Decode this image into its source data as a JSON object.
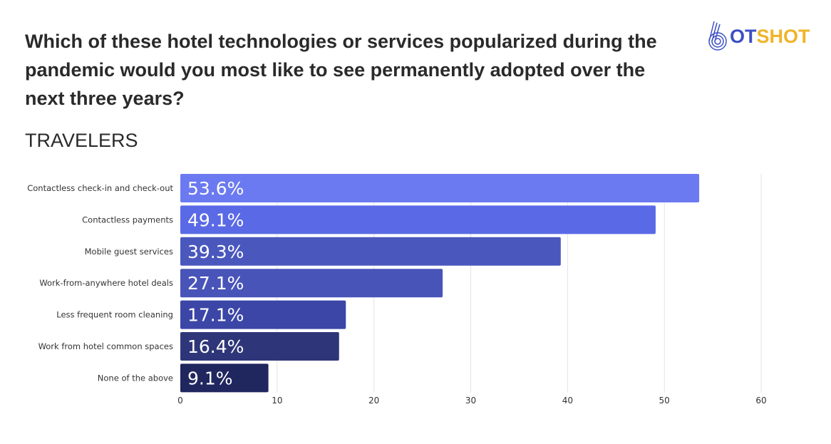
{
  "title": "Which of these hotel technologies or services popularized during the pandemic would you most like to see permanently adopted over the next three years?",
  "subtitle": "TRAVELERS",
  "logo": {
    "text_blue": "OT",
    "text_yellow": "SHOT",
    "full": "HOTSHOT"
  },
  "chart_data": {
    "type": "bar",
    "orientation": "horizontal",
    "title": "Which of these hotel technologies or services popularized during the pandemic would you most like to see permanently adopted over the next three years?",
    "subtitle": "TRAVELERS",
    "categories": [
      "Contactless check-in and check-out",
      "Contactless payments",
      "Mobile guest services",
      "Work-from-anywhere hotel deals",
      "Less frequent room cleaning",
      "Work from hotel common spaces",
      "None of the above"
    ],
    "values": [
      53.6,
      49.1,
      39.3,
      27.1,
      17.1,
      16.4,
      9.1
    ],
    "data_labels": [
      "53.6%",
      "49.1%",
      "39.3%",
      "27.1%",
      "17.1%",
      "16.4%",
      "9.1%"
    ],
    "colors": [
      "#6b7af0",
      "#5a6ae6",
      "#4a58bd",
      "#4854b8",
      "#3b46a6",
      "#2e3679",
      "#20265e"
    ],
    "xlim": [
      0,
      60
    ],
    "xticks": [
      "0",
      "10",
      "20",
      "30",
      "40",
      "50",
      "60"
    ],
    "grid": true,
    "xlabel": "",
    "ylabel": ""
  }
}
